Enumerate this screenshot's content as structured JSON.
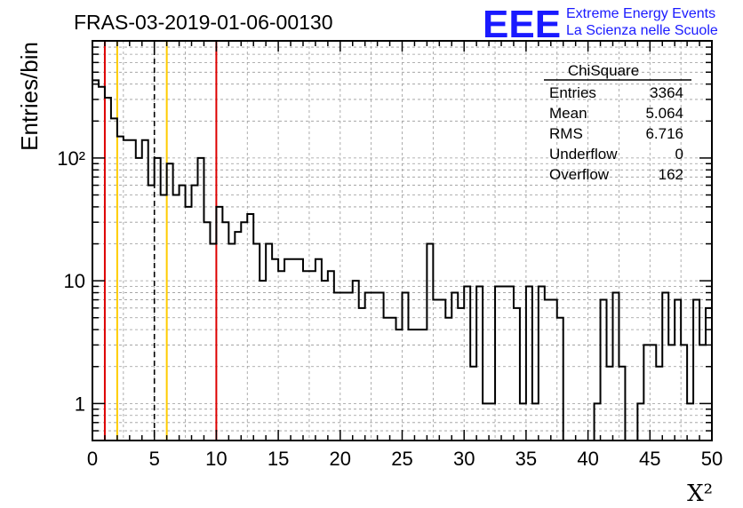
{
  "header": {
    "run_title": "FRAS-03-2019-01-06-00130",
    "logo_text": "EEE",
    "logo_line1": "Extreme Energy Events",
    "logo_line2": "La Scienza nelle Scuole"
  },
  "stats": {
    "title": "ChiSquare",
    "rows": [
      {
        "label": "Entries",
        "value": "3364"
      },
      {
        "label": "Mean",
        "value": "5.064"
      },
      {
        "label": "RMS",
        "value": "6.716"
      },
      {
        "label": "Underflow",
        "value": "0"
      },
      {
        "label": "Overflow",
        "value": "162"
      }
    ]
  },
  "colors": {
    "histogram": "#000000",
    "red_line": "#dd0000",
    "yellow_line": "#ffcc00",
    "dashed_line": "#000000",
    "grid": "#999999",
    "logo": "#1a1aff"
  },
  "chart_data": {
    "type": "histogram",
    "title": "FRAS-03-2019-01-06-00130",
    "xlabel": "X²",
    "ylabel": "Entries/bin",
    "xlim": [
      0,
      50
    ],
    "ylim": [
      0.5,
      900
    ],
    "y_scale": "log",
    "grid": true,
    "bin_width": 0.5,
    "x_ticks": [
      0,
      5,
      10,
      15,
      20,
      25,
      30,
      35,
      40,
      45,
      50
    ],
    "y_ticks": [
      {
        "value": 1,
        "label": "1"
      },
      {
        "value": 10,
        "label": "10"
      },
      {
        "value": 100,
        "label": "10²"
      }
    ],
    "bin_counts": [
      430,
      380,
      310,
      210,
      150,
      140,
      140,
      100,
      140,
      60,
      100,
      50,
      90,
      50,
      60,
      40,
      60,
      100,
      30,
      20,
      40,
      30,
      20,
      25,
      30,
      35,
      20,
      10,
      20,
      15,
      12,
      15,
      15,
      15,
      12,
      12,
      15,
      10,
      12,
      8,
      8,
      8,
      10,
      6,
      8,
      8,
      8,
      5,
      5,
      4,
      8,
      4,
      4,
      4,
      20,
      7,
      7,
      5,
      8,
      6,
      9,
      2,
      9,
      1,
      1,
      9,
      9,
      9,
      6,
      1,
      9,
      1,
      9,
      7,
      7,
      5,
      0,
      0,
      0,
      0,
      0,
      1,
      7,
      2,
      8,
      2,
      0,
      0,
      1,
      3,
      3,
      2,
      8,
      3,
      7,
      3,
      1,
      7,
      3,
      6
    ],
    "vertical_lines": [
      {
        "x": 1,
        "style": "red"
      },
      {
        "x": 2,
        "style": "yellow"
      },
      {
        "x": 5,
        "style": "dashed"
      },
      {
        "x": 6,
        "style": "yellow"
      },
      {
        "x": 10,
        "style": "red"
      }
    ]
  }
}
